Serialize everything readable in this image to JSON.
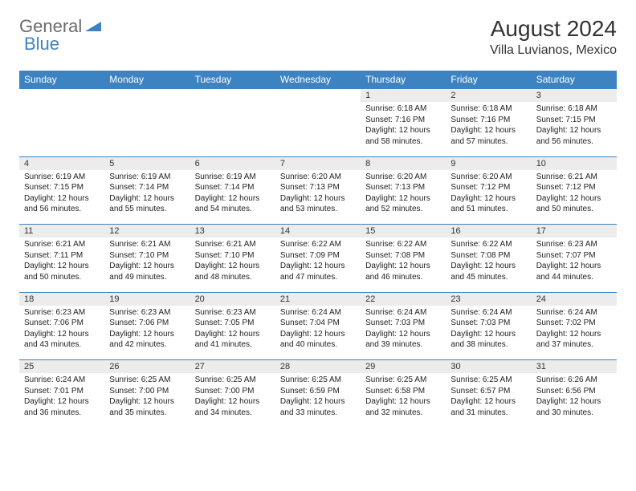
{
  "logo": {
    "general": "General",
    "blue": "Blue"
  },
  "title": "August 2024",
  "location": "Villa Luvianos, Mexico",
  "colors": {
    "header_bg": "#3d83c2",
    "header_text": "#ffffff",
    "daynum_bg": "#ececec",
    "border": "#3d83c2",
    "logo_gray": "#6b6b6b",
    "logo_blue": "#3d83c2"
  },
  "day_headers": [
    "Sunday",
    "Monday",
    "Tuesday",
    "Wednesday",
    "Thursday",
    "Friday",
    "Saturday"
  ],
  "weeks": [
    {
      "nums": [
        "",
        "",
        "",
        "",
        "1",
        "2",
        "3"
      ],
      "cells": [
        null,
        null,
        null,
        null,
        {
          "sunrise": "Sunrise: 6:18 AM",
          "sunset": "Sunset: 7:16 PM",
          "daylight": "Daylight: 12 hours and 58 minutes."
        },
        {
          "sunrise": "Sunrise: 6:18 AM",
          "sunset": "Sunset: 7:16 PM",
          "daylight": "Daylight: 12 hours and 57 minutes."
        },
        {
          "sunrise": "Sunrise: 6:18 AM",
          "sunset": "Sunset: 7:15 PM",
          "daylight": "Daylight: 12 hours and 56 minutes."
        }
      ]
    },
    {
      "nums": [
        "4",
        "5",
        "6",
        "7",
        "8",
        "9",
        "10"
      ],
      "cells": [
        {
          "sunrise": "Sunrise: 6:19 AM",
          "sunset": "Sunset: 7:15 PM",
          "daylight": "Daylight: 12 hours and 56 minutes."
        },
        {
          "sunrise": "Sunrise: 6:19 AM",
          "sunset": "Sunset: 7:14 PM",
          "daylight": "Daylight: 12 hours and 55 minutes."
        },
        {
          "sunrise": "Sunrise: 6:19 AM",
          "sunset": "Sunset: 7:14 PM",
          "daylight": "Daylight: 12 hours and 54 minutes."
        },
        {
          "sunrise": "Sunrise: 6:20 AM",
          "sunset": "Sunset: 7:13 PM",
          "daylight": "Daylight: 12 hours and 53 minutes."
        },
        {
          "sunrise": "Sunrise: 6:20 AM",
          "sunset": "Sunset: 7:13 PM",
          "daylight": "Daylight: 12 hours and 52 minutes."
        },
        {
          "sunrise": "Sunrise: 6:20 AM",
          "sunset": "Sunset: 7:12 PM",
          "daylight": "Daylight: 12 hours and 51 minutes."
        },
        {
          "sunrise": "Sunrise: 6:21 AM",
          "sunset": "Sunset: 7:12 PM",
          "daylight": "Daylight: 12 hours and 50 minutes."
        }
      ]
    },
    {
      "nums": [
        "11",
        "12",
        "13",
        "14",
        "15",
        "16",
        "17"
      ],
      "cells": [
        {
          "sunrise": "Sunrise: 6:21 AM",
          "sunset": "Sunset: 7:11 PM",
          "daylight": "Daylight: 12 hours and 50 minutes."
        },
        {
          "sunrise": "Sunrise: 6:21 AM",
          "sunset": "Sunset: 7:10 PM",
          "daylight": "Daylight: 12 hours and 49 minutes."
        },
        {
          "sunrise": "Sunrise: 6:21 AM",
          "sunset": "Sunset: 7:10 PM",
          "daylight": "Daylight: 12 hours and 48 minutes."
        },
        {
          "sunrise": "Sunrise: 6:22 AM",
          "sunset": "Sunset: 7:09 PM",
          "daylight": "Daylight: 12 hours and 47 minutes."
        },
        {
          "sunrise": "Sunrise: 6:22 AM",
          "sunset": "Sunset: 7:08 PM",
          "daylight": "Daylight: 12 hours and 46 minutes."
        },
        {
          "sunrise": "Sunrise: 6:22 AM",
          "sunset": "Sunset: 7:08 PM",
          "daylight": "Daylight: 12 hours and 45 minutes."
        },
        {
          "sunrise": "Sunrise: 6:23 AM",
          "sunset": "Sunset: 7:07 PM",
          "daylight": "Daylight: 12 hours and 44 minutes."
        }
      ]
    },
    {
      "nums": [
        "18",
        "19",
        "20",
        "21",
        "22",
        "23",
        "24"
      ],
      "cells": [
        {
          "sunrise": "Sunrise: 6:23 AM",
          "sunset": "Sunset: 7:06 PM",
          "daylight": "Daylight: 12 hours and 43 minutes."
        },
        {
          "sunrise": "Sunrise: 6:23 AM",
          "sunset": "Sunset: 7:06 PM",
          "daylight": "Daylight: 12 hours and 42 minutes."
        },
        {
          "sunrise": "Sunrise: 6:23 AM",
          "sunset": "Sunset: 7:05 PM",
          "daylight": "Daylight: 12 hours and 41 minutes."
        },
        {
          "sunrise": "Sunrise: 6:24 AM",
          "sunset": "Sunset: 7:04 PM",
          "daylight": "Daylight: 12 hours and 40 minutes."
        },
        {
          "sunrise": "Sunrise: 6:24 AM",
          "sunset": "Sunset: 7:03 PM",
          "daylight": "Daylight: 12 hours and 39 minutes."
        },
        {
          "sunrise": "Sunrise: 6:24 AM",
          "sunset": "Sunset: 7:03 PM",
          "daylight": "Daylight: 12 hours and 38 minutes."
        },
        {
          "sunrise": "Sunrise: 6:24 AM",
          "sunset": "Sunset: 7:02 PM",
          "daylight": "Daylight: 12 hours and 37 minutes."
        }
      ]
    },
    {
      "nums": [
        "25",
        "26",
        "27",
        "28",
        "29",
        "30",
        "31"
      ],
      "cells": [
        {
          "sunrise": "Sunrise: 6:24 AM",
          "sunset": "Sunset: 7:01 PM",
          "daylight": "Daylight: 12 hours and 36 minutes."
        },
        {
          "sunrise": "Sunrise: 6:25 AM",
          "sunset": "Sunset: 7:00 PM",
          "daylight": "Daylight: 12 hours and 35 minutes."
        },
        {
          "sunrise": "Sunrise: 6:25 AM",
          "sunset": "Sunset: 7:00 PM",
          "daylight": "Daylight: 12 hours and 34 minutes."
        },
        {
          "sunrise": "Sunrise: 6:25 AM",
          "sunset": "Sunset: 6:59 PM",
          "daylight": "Daylight: 12 hours and 33 minutes."
        },
        {
          "sunrise": "Sunrise: 6:25 AM",
          "sunset": "Sunset: 6:58 PM",
          "daylight": "Daylight: 12 hours and 32 minutes."
        },
        {
          "sunrise": "Sunrise: 6:25 AM",
          "sunset": "Sunset: 6:57 PM",
          "daylight": "Daylight: 12 hours and 31 minutes."
        },
        {
          "sunrise": "Sunrise: 6:26 AM",
          "sunset": "Sunset: 6:56 PM",
          "daylight": "Daylight: 12 hours and 30 minutes."
        }
      ]
    }
  ]
}
